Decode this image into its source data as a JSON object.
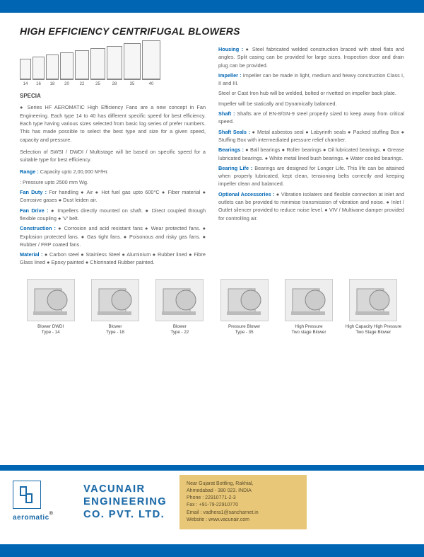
{
  "title": "HIGH EFFICIENCY CENTRIFUGAL BLOWERS",
  "fanSizes": [
    "14",
    "16",
    "18",
    "20",
    "22",
    "25",
    "28",
    "35",
    "40"
  ],
  "fanHeights": [
    30,
    33,
    36,
    39,
    42,
    45,
    48,
    52,
    56
  ],
  "fanWidths": [
    16,
    17,
    18,
    19,
    20,
    21,
    22,
    24,
    26
  ],
  "specia": "SPECIA",
  "leftIntro1": "●  Series HF AEROMATIC High Efficiency Fans are a new concept in Fan Engineering. Each type 14 to 40 has different specific speed for best efficiency. Each type having various sizes selected from basic log series of prefer numbers. This has made possible to select the best type and size for a given speed, capacity and pressure.",
  "leftIntro2": "Selection of SWSI / DWDI / Multistage will be based on specific speed for a suitable type for best efficiency.",
  "specsLeft": [
    {
      "label": "Range :",
      "text": " Capacity upto 2,00,000 M³/Hr."
    },
    {
      "label": "",
      "text": "          : Pressure upto 2500 mm Wg."
    },
    {
      "label": "Fan Duty :",
      "text": " For handling ● Air ● Hot fuel gas upto 600°C ● Fiber material ● Corrosive gases ● Dust leiden air."
    },
    {
      "label": "Fan Drive :",
      "text": " ● Impellers directly mounted on shaft. ● Direct coupled through flexible coupling ● 'V' belt."
    },
    {
      "label": "Construction :",
      "text": " ● Corrosion and acid resistant fans ● Wear protected fans. ● Explosion protected fans. ● Gas tight fans. ● Poisonous and risky gas fans. ● Rubber / FRP coated fans."
    },
    {
      "label": "Material :",
      "text": " ● Carbon steel ● Stainless Steel ● Aluminium ● Rubber lined ● Fibre Glass lined ● Epoxy painted ● Chlorinated Rubber painted."
    }
  ],
  "specsRight": [
    {
      "label": "Housing :",
      "text": " ● Steel fabricated welded construction braced with steel flats and angles. Split casing can be provided for large sizes. Inspection door and drain plug can be provided."
    },
    {
      "label": "Impeller :",
      "text": " Impeller can be made in light, medium and heavy construction Class I, II and III."
    },
    {
      "label": "",
      "text": "Steel or Cast Iron hub will be welded, bolted or rivetted on impeller back plate."
    },
    {
      "label": "",
      "text": "Impeller will be statically and Dynamically balanced."
    },
    {
      "label": "Shaft :",
      "text": " Shafts are of EN-8/GN-9 steel properly sized to keep away from critical speed."
    },
    {
      "label": "Shaft Seals :",
      "text": " ● Metal asbestos seal ● Labyrinth seals ● Packed stuffing Box ● Stuffing Box with intermediated pressure relief chamber."
    },
    {
      "label": "Bearings :",
      "text": " ● Ball bearings ● Roller bearings ● Oil lubricated bearings. ● Grease lubricated bearings. ● White metal lined bush bearings. ● Water cooled bearings."
    },
    {
      "label": "Bearing Life :",
      "text": " Bearings are designed for Longer Life. This life can be attained when properly lubricated, kept clean, tensioning belts correctly and keeping impeller clean and balanced."
    },
    {
      "label": "Optional Accessories :",
      "text": " ● Vibration isolaters and flexible connection at inlet and outlets can be provided to minimise transmission of vibration and noise. ● Inlet / Outlet silencer provided to reduce noise level. ● VIV / Multivane damper provided for controlling air."
    }
  ],
  "products": [
    {
      "cap1": "Blower DWDI",
      "cap2": "Type - 14"
    },
    {
      "cap1": "Blower",
      "cap2": "Type - 18"
    },
    {
      "cap1": "Blower",
      "cap2": "Type - 22"
    },
    {
      "cap1": "Pressure Blower",
      "cap2": "Type - 35"
    },
    {
      "cap1": "High Pressure",
      "cap2": "Two stage Blower"
    },
    {
      "cap1": "High Capacity High Pressure",
      "cap2": "Two Stage Blower"
    }
  ],
  "brand": "aeromatic",
  "companyLine1": "VACUNAIR",
  "companyLine2": "ENGINEERING",
  "companyLine3": "CO. PVT. LTD.",
  "contact": {
    "addr1": "Near Gujarat Bottling, Rakhial,",
    "addr2": "Ahmedabad - 380 023. INDIA",
    "phone": "Phone  : 22910771-2-3",
    "fax": "Fax       : +91-79-22910770",
    "email": "Email   : vadhera1@sancharnet.in",
    "web": "Website : www.vacunair.com"
  },
  "colors": {
    "blue": "#0066b3",
    "labelBlue": "#0066b3",
    "contactBg": "#e8c878"
  }
}
